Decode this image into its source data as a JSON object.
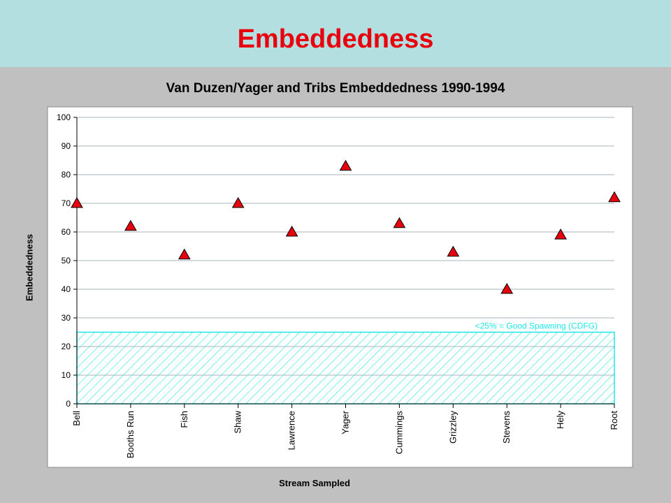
{
  "slide": {
    "title": "Embeddedness"
  },
  "colors": {
    "banner": "#b4dfe1",
    "slide_title": "#e8000f",
    "background": "#c0c0c0",
    "plot_background": "#ffffff",
    "marker_fill": "#e8000f",
    "zone": "#21e6e6",
    "grid": "#a9b3bd"
  },
  "chart_data": {
    "type": "scatter",
    "title": "Van Duzen/Yager and Tribs Embeddedness 1990-1994",
    "xlabel": "Stream Sampled",
    "ylabel": "Embeddedness",
    "ylim": [
      0,
      100
    ],
    "yticks": [
      0,
      10,
      20,
      30,
      40,
      50,
      60,
      70,
      80,
      90,
      100
    ],
    "grid": true,
    "marker": "triangle",
    "categories": [
      "Bell",
      "Booths Run",
      "Fish",
      "Shaw",
      "Lawrence",
      "Yager",
      "Cummings",
      "Grizzley",
      "Stevens",
      "Hely",
      "Root"
    ],
    "values": [
      70,
      62,
      52,
      70,
      60,
      83,
      63,
      53,
      40,
      59,
      72
    ],
    "reference_band": {
      "from": 0,
      "to": 25,
      "label": "<25% = Good Spawning (CDFG)"
    }
  }
}
